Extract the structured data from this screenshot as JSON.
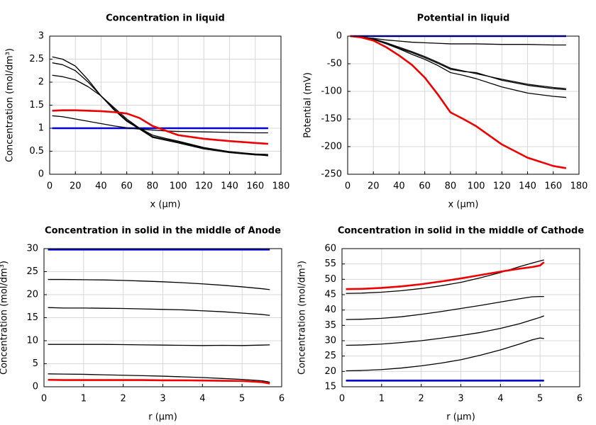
{
  "chart_data": [
    {
      "type": "line",
      "title": "Concentration in liquid",
      "x_label": "x (µm)",
      "y_label": "Concentration (mol/dm³)",
      "x": [
        2,
        10,
        20,
        30,
        40,
        50,
        60,
        70,
        80,
        90,
        100,
        120,
        140,
        160,
        170
      ],
      "series": [
        {
          "color": "#0000cc",
          "values": [
            1,
            1,
            1,
            1,
            1,
            1,
            1,
            1,
            1,
            1,
            1,
            1,
            1,
            1,
            1
          ]
        },
        {
          "color": "#000000",
          "values": [
            2.55,
            2.5,
            2.35,
            2.05,
            1.7,
            1.4,
            1.15,
            0.98,
            0.8,
            0.74,
            0.68,
            0.55,
            0.47,
            0.42,
            0.41
          ]
        },
        {
          "color": "#000000",
          "values": [
            2.42,
            2.38,
            2.25,
            2.0,
            1.7,
            1.42,
            1.17,
            0.99,
            0.82,
            0.76,
            0.7,
            0.57,
            0.49,
            0.43,
            0.4
          ]
        },
        {
          "color": "#000000",
          "values": [
            2.15,
            2.12,
            2.05,
            1.9,
            1.7,
            1.45,
            1.2,
            1.0,
            0.85,
            0.78,
            0.72,
            0.58,
            0.49,
            0.44,
            0.43
          ]
        },
        {
          "color": "#000000",
          "values": [
            1.27,
            1.25,
            1.2,
            1.15,
            1.1,
            1.05,
            1.01,
            0.98,
            0.96,
            0.94,
            0.93,
            0.92,
            0.91,
            0.9,
            0.9
          ]
        },
        {
          "color": "#ee0000",
          "values": [
            1.38,
            1.39,
            1.39,
            1.38,
            1.37,
            1.35,
            1.32,
            1.22,
            1.05,
            0.95,
            0.85,
            0.77,
            0.72,
            0.68,
            0.66
          ]
        }
      ],
      "xlim": [
        0,
        180
      ],
      "xticks": [
        0,
        20,
        40,
        60,
        80,
        100,
        120,
        140,
        160,
        180
      ],
      "ylim": [
        0,
        3
      ],
      "yticks": [
        0,
        0.5,
        1,
        1.5,
        2,
        2.5,
        3
      ],
      "grid": true
    },
    {
      "type": "line",
      "title": "Potential in liquid",
      "x_label": "x (µm)",
      "y_label": "Potential (mV)",
      "x": [
        2,
        10,
        20,
        30,
        40,
        50,
        60,
        70,
        80,
        90,
        100,
        120,
        140,
        160,
        170
      ],
      "series": [
        {
          "color": "#0000cc",
          "values": [
            0,
            0,
            0,
            0,
            0,
            0,
            0,
            0,
            0,
            0,
            0,
            0,
            0,
            0,
            0
          ]
        },
        {
          "color": "#000000",
          "values": [
            0,
            -2,
            -4,
            -7,
            -9,
            -11,
            -12,
            -13,
            -14,
            -14,
            -14,
            -15,
            -15,
            -16,
            -16
          ]
        },
        {
          "color": "#000000",
          "values": [
            0,
            -1,
            -5,
            -12,
            -20,
            -28,
            -37,
            -47,
            -58,
            -63,
            -68,
            -78,
            -87,
            -93,
            -95
          ]
        },
        {
          "color": "#000000",
          "values": [
            0,
            -1,
            -5,
            -12,
            -22,
            -30,
            -39,
            -49,
            -60,
            -64,
            -66,
            -80,
            -89,
            -95,
            -97
          ]
        },
        {
          "color": "#000000",
          "values": [
            0,
            -1,
            -6,
            -14,
            -23,
            -33,
            -42,
            -53,
            -66,
            -71,
            -77,
            -92,
            -103,
            -109,
            -111
          ]
        },
        {
          "color": "#ee0000",
          "values": [
            0,
            -2,
            -8,
            -20,
            -35,
            -52,
            -75,
            -105,
            -138,
            -150,
            -163,
            -196,
            -220,
            -235,
            -239
          ]
        }
      ],
      "xlim": [
        0,
        180
      ],
      "xticks": [
        0,
        20,
        40,
        60,
        80,
        100,
        120,
        140,
        160,
        180
      ],
      "ylim": [
        -250,
        0
      ],
      "yticks": [
        -250,
        -200,
        -150,
        -100,
        -50,
        0
      ],
      "grid": true
    },
    {
      "type": "line",
      "title": "Concentration in solid in the middle of Anode",
      "x_label": "r (µm)",
      "y_label": "Concentration (mol/dm³)",
      "x": [
        0.1,
        0.5,
        1,
        1.5,
        2,
        2.5,
        3,
        3.5,
        4,
        4.5,
        5,
        5.5,
        5.7
      ],
      "series": [
        {
          "color": "#0000cc",
          "values": [
            29.8,
            29.8,
            29.8,
            29.8,
            29.8,
            29.8,
            29.8,
            29.8,
            29.8,
            29.8,
            29.8,
            29.8,
            29.8
          ]
        },
        {
          "color": "#000000",
          "values": [
            23.3,
            23.3,
            23.25,
            23.2,
            23.1,
            22.95,
            22.8,
            22.6,
            22.35,
            22.05,
            21.7,
            21.3,
            21.1
          ]
        },
        {
          "color": "#000000",
          "values": [
            17.2,
            17.1,
            17.1,
            17.05,
            17.0,
            16.9,
            16.8,
            16.7,
            16.5,
            16.3,
            16.0,
            15.7,
            15.5
          ]
        },
        {
          "color": "#000000",
          "values": [
            9.2,
            9.2,
            9.2,
            9.2,
            9.15,
            9.1,
            9.05,
            9.0,
            8.95,
            9.0,
            8.95,
            9.05,
            9.1
          ]
        },
        {
          "color": "#000000",
          "values": [
            2.8,
            2.75,
            2.7,
            2.6,
            2.5,
            2.4,
            2.3,
            2.15,
            2.0,
            1.8,
            1.6,
            1.3,
            1.0
          ]
        },
        {
          "color": "#ee0000",
          "values": [
            1.5,
            1.45,
            1.45,
            1.45,
            1.45,
            1.45,
            1.4,
            1.4,
            1.35,
            1.3,
            1.25,
            1.0,
            0.7
          ]
        }
      ],
      "xlim": [
        0,
        6
      ],
      "xticks": [
        0,
        1,
        2,
        3,
        4,
        5,
        6
      ],
      "ylim": [
        0,
        30
      ],
      "yticks": [
        0,
        5,
        10,
        15,
        20,
        25,
        30
      ],
      "grid": true
    },
    {
      "type": "line",
      "title": "Concentration in solid in the middle of Cathode",
      "x_label": "r (µm)",
      "y_label": "Concentration (mol/dm³)",
      "x": [
        0.1,
        0.5,
        1,
        1.5,
        2,
        2.5,
        3,
        3.5,
        4,
        4.5,
        4.8,
        5.0,
        5.1
      ],
      "series": [
        {
          "color": "#0000cc",
          "values": [
            17,
            17,
            17,
            17,
            17,
            17,
            17,
            17,
            17,
            17,
            17,
            17,
            17
          ]
        },
        {
          "color": "#000000",
          "values": [
            20.2,
            20.3,
            20.6,
            21.1,
            21.8,
            22.7,
            23.8,
            25.3,
            27.0,
            29.0,
            30.3,
            30.9,
            30.7
          ]
        },
        {
          "color": "#000000",
          "values": [
            28.5,
            28.6,
            28.9,
            29.4,
            30.0,
            30.8,
            31.7,
            32.7,
            34.0,
            35.6,
            36.8,
            37.6,
            38.1
          ]
        },
        {
          "color": "#000000",
          "values": [
            36.9,
            37.0,
            37.3,
            37.8,
            38.6,
            39.5,
            40.5,
            41.5,
            42.6,
            43.7,
            44.3,
            44.4,
            44.4
          ]
        },
        {
          "color": "#000000",
          "values": [
            45.4,
            45.5,
            45.8,
            46.3,
            47.0,
            47.9,
            49.0,
            50.5,
            52.2,
            54.2,
            55.3,
            56.0,
            56.3
          ]
        },
        {
          "color": "#ee0000",
          "values": [
            46.8,
            46.9,
            47.2,
            47.7,
            48.4,
            49.3,
            50.3,
            51.4,
            52.5,
            53.5,
            54.0,
            54.5,
            55.6
          ]
        }
      ],
      "xlim": [
        0,
        6
      ],
      "xticks": [
        0,
        1,
        2,
        3,
        4,
        5,
        6
      ],
      "ylim": [
        15,
        60
      ],
      "yticks": [
        15,
        20,
        25,
        30,
        35,
        40,
        45,
        50,
        55,
        60
      ],
      "grid": true
    }
  ]
}
